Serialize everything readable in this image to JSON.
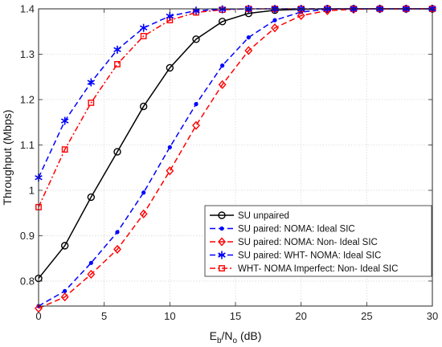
{
  "chart_data": {
    "type": "line",
    "xlabel": {
      "main": "E",
      "sub1": "b",
      "mid": "/N",
      "sub2": "o",
      "unit": " (dB)"
    },
    "ylabel": "Throughput (Mbps)",
    "xlim": [
      0,
      30
    ],
    "ylim": [
      0.745,
      1.4
    ],
    "xticks": [
      0,
      5,
      10,
      15,
      20,
      25,
      30
    ],
    "yticks": [
      0.8,
      0.9,
      1,
      1.1,
      1.2,
      1.3,
      1.4
    ],
    "ytick_labels": [
      "0.8",
      "0.9",
      "1",
      "1.1",
      "1.2",
      "1.3",
      "1.4"
    ],
    "grid": true,
    "legend_position": "bottom-right",
    "series": [
      {
        "name": "SU unpaired",
        "color": "#000000",
        "dash": "solid",
        "marker": "circle",
        "x": [
          0,
          2,
          4,
          6,
          8,
          10,
          12,
          14,
          16,
          18,
          20,
          22,
          24,
          26,
          28,
          30
        ],
        "y": [
          0.806,
          0.878,
          0.985,
          1.085,
          1.185,
          1.27,
          1.333,
          1.372,
          1.39,
          1.397,
          1.399,
          1.4,
          1.4,
          1.4,
          1.4,
          1.4
        ]
      },
      {
        "name": "SU paired: NOMA: Ideal SIC",
        "color": "#0000FF",
        "dash": "dashed",
        "marker": "dot",
        "x": [
          0,
          2,
          4,
          6,
          8,
          10,
          12,
          14,
          16,
          18,
          20,
          22,
          24,
          26,
          28,
          30
        ],
        "y": [
          0.745,
          0.778,
          0.84,
          0.908,
          0.995,
          1.095,
          1.19,
          1.275,
          1.337,
          1.375,
          1.393,
          1.399,
          1.4,
          1.4,
          1.4,
          1.4
        ]
      },
      {
        "name": "SU paired: NOMA: Non- Ideal SIC",
        "color": "#FF0000",
        "dash": "dashed",
        "marker": "diamond",
        "x": [
          0,
          2,
          4,
          6,
          8,
          10,
          12,
          14,
          16,
          18,
          20,
          22,
          24,
          26,
          28,
          30
        ],
        "y": [
          0.74,
          0.765,
          0.815,
          0.87,
          0.948,
          1.043,
          1.143,
          1.233,
          1.308,
          1.358,
          1.385,
          1.396,
          1.399,
          1.4,
          1.4,
          1.4
        ]
      },
      {
        "name": "SU paired: WHT- NOMA: Ideal SIC",
        "color": "#0000FF",
        "dash": "dashed",
        "marker": "asterisk",
        "x": [
          0,
          2,
          4,
          6,
          8,
          10,
          12,
          14,
          16,
          18,
          20,
          22,
          24,
          26,
          28,
          30
        ],
        "y": [
          1.028,
          1.153,
          1.238,
          1.31,
          1.358,
          1.384,
          1.396,
          1.399,
          1.4,
          1.4,
          1.4,
          1.4,
          1.4,
          1.4,
          1.4,
          1.4
        ]
      },
      {
        "name": "WHT- NOMA Imperfect: Non- Ideal SIC",
        "color": "#FF0000",
        "dash": "dashdot",
        "marker": "square",
        "x": [
          0,
          2,
          4,
          6,
          8,
          10,
          12,
          14,
          16,
          18,
          20,
          22,
          24,
          26,
          28,
          30
        ],
        "y": [
          0.963,
          1.09,
          1.193,
          1.278,
          1.34,
          1.375,
          1.392,
          1.398,
          1.4,
          1.4,
          1.4,
          1.4,
          1.4,
          1.4,
          1.4,
          1.4
        ]
      }
    ]
  }
}
